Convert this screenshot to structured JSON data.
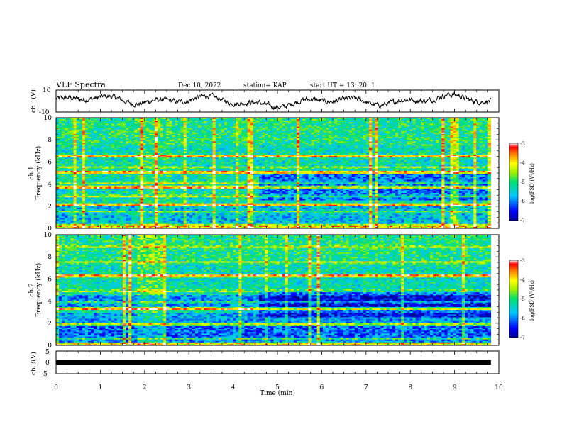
{
  "header": {
    "title": "VLF Spectra",
    "date": "Dec.10, 2022",
    "station": "station= KAP",
    "start": "start  UT =   13: 20: 1"
  },
  "chart_data": [
    {
      "type": "line",
      "name": "ch1-waveform",
      "ylabel": "ch.1(V)",
      "ylim": [
        -10,
        10
      ],
      "yticks": [
        "10",
        "-10"
      ],
      "xlim": [
        0,
        10
      ],
      "trace_range_min": [
        0,
        9.82
      ]
    },
    {
      "type": "heatmap",
      "name": "ch1-spectrogram",
      "ylabel_line1": "ch.1",
      "ylabel_line2": "Frequency (kHz)",
      "ylim": [
        0,
        10
      ],
      "yticks": [
        "0",
        "2",
        "4",
        "6",
        "8",
        "10"
      ],
      "xlim": [
        0,
        10
      ],
      "data_extent_min": [
        0,
        9.82
      ],
      "bright_bands_khz": [
        0.3,
        1.5,
        2.1,
        2.9,
        3.7,
        4.1,
        5.1,
        5.5,
        6.5
      ],
      "strong_bands_khz": [
        2.1,
        3.7,
        5.1,
        6.5
      ],
      "colorbar": {
        "min": -7,
        "max": -3,
        "ticks": [
          "-3",
          "-4",
          "-5",
          "-6",
          "-7"
        ],
        "label": "log(PSD)(V²/Hz)"
      }
    },
    {
      "type": "heatmap",
      "name": "ch2-spectrogram",
      "ylabel_line1": "ch.2",
      "ylabel_line2": "Frequency (kHz)",
      "ylim": [
        0,
        10
      ],
      "yticks": [
        "0",
        "2",
        "4",
        "6",
        "8",
        "10"
      ],
      "xlim": [
        0,
        10
      ],
      "data_extent_min": [
        0,
        9.82
      ],
      "bright_bands_khz": [
        0.6,
        1.9,
        3.3,
        3.9,
        4.9,
        6.3,
        7.5,
        8.9
      ],
      "strong_bands_khz": [
        1.9,
        3.3,
        6.3
      ],
      "burst_window_min": [
        1.85,
        2.5
      ],
      "colorbar": {
        "min": -7,
        "max": -3,
        "ticks": [
          "-3",
          "-4",
          "-5",
          "-6",
          "-7"
        ],
        "label": "log(PSD)(V²/Hz)"
      }
    },
    {
      "type": "line",
      "name": "ch3-waveform",
      "ylabel": "ch.3(V)",
      "ylim": [
        -5,
        5
      ],
      "yticks": [
        "5",
        "0",
        "-5"
      ],
      "xlim": [
        0,
        10
      ],
      "level_range_v": [
        -1,
        1
      ],
      "xlabel": "Time (min)",
      "xticks": [
        "0",
        "1",
        "2",
        "3",
        "4",
        "5",
        "6",
        "7",
        "8",
        "9",
        "10"
      ]
    }
  ]
}
